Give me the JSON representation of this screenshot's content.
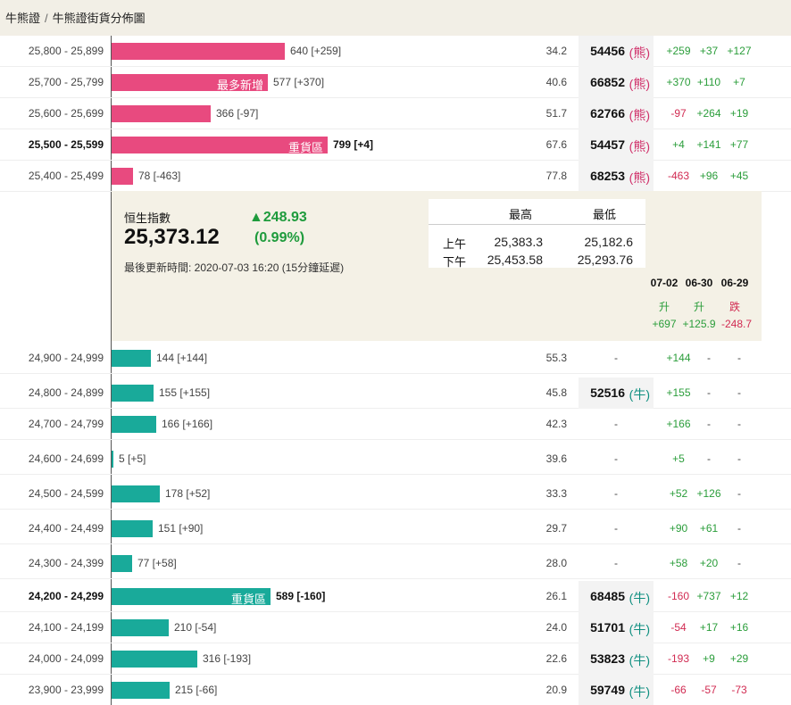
{
  "breadcrumb": {
    "home": "牛熊證",
    "separator": "/",
    "current": "牛熊證街貨分佈圖"
  },
  "bear_rows": [
    {
      "range": "25,800 - 25,899",
      "qty": 640,
      "label": "640 [+259]",
      "tag": "",
      "bold": false,
      "pct": "34.2",
      "code": "54456",
      "code_tag": "(熊)",
      "c1": "+259",
      "c2": "+37",
      "c3": "+127"
    },
    {
      "range": "25,700 - 25,799",
      "qty": 577,
      "label": "577 [+370]",
      "tag": "最多新增",
      "bold": false,
      "pct": "40.6",
      "code": "66852",
      "code_tag": "(熊)",
      "c1": "+370",
      "c2": "+110",
      "c3": "+7"
    },
    {
      "range": "25,600 - 25,699",
      "qty": 366,
      "label": "366 [-97]",
      "tag": "",
      "bold": false,
      "pct": "51.7",
      "code": "62766",
      "code_tag": "(熊)",
      "c1": "-97",
      "c2": "+264",
      "c3": "+19"
    },
    {
      "range": "25,500 - 25,599",
      "qty": 799,
      "label": "799 [+4]",
      "tag": "重貨區",
      "bold": true,
      "pct": "67.6",
      "code": "54457",
      "code_tag": "(熊)",
      "c1": "+4",
      "c2": "+141",
      "c3": "+77"
    },
    {
      "range": "25,400 - 25,499",
      "qty": 78,
      "label": "78 [-463]",
      "tag": "",
      "bold": false,
      "pct": "77.8",
      "code": "68253",
      "code_tag": "(熊)",
      "c1": "-463",
      "c2": "+96",
      "c3": "+45"
    }
  ],
  "index": {
    "name": "恒生指數",
    "value": "25,373.12",
    "change": "▲248.93",
    "change_pct": "(0.99%)",
    "updated": "最後更新時間: 2020-07-03 16:20 (15分鐘延遲)",
    "high_label": "最高",
    "low_label": "最低",
    "sessions": [
      {
        "label": "上午",
        "high": "25,383.3",
        "low": "25,182.6"
      },
      {
        "label": "下午",
        "high": "25,453.58",
        "low": "25,293.76"
      }
    ]
  },
  "history": {
    "dates": [
      "07-02",
      "06-30",
      "06-29"
    ],
    "directions": [
      "升",
      "升",
      "跌"
    ],
    "values": [
      "+697",
      "+125.9",
      "-248.7"
    ]
  },
  "bull_rows": [
    {
      "range": "24,900 - 24,999",
      "qty": 144,
      "label": "144 [+144]",
      "tag": "",
      "bold": false,
      "pct": "55.3",
      "code": "",
      "code_tag": "",
      "c1": "+144",
      "c2": "-",
      "c3": "-"
    },
    {
      "range": "24,800 - 24,899",
      "qty": 155,
      "label": "155 [+155]",
      "tag": "",
      "bold": false,
      "pct": "45.8",
      "code": "52516",
      "code_tag": "(牛)",
      "c1": "+155",
      "c2": "-",
      "c3": "-"
    },
    {
      "range": "24,700 - 24,799",
      "qty": 166,
      "label": "166 [+166]",
      "tag": "",
      "bold": false,
      "pct": "42.3",
      "code": "",
      "code_tag": "",
      "c1": "+166",
      "c2": "-",
      "c3": "-"
    },
    {
      "range": "24,600 - 24,699",
      "qty": 5,
      "label": "5 [+5]",
      "tag": "",
      "bold": false,
      "pct": "39.6",
      "code": "",
      "code_tag": "",
      "c1": "+5",
      "c2": "-",
      "c3": "-"
    },
    {
      "range": "24,500 - 24,599",
      "qty": 178,
      "label": "178 [+52]",
      "tag": "",
      "bold": false,
      "pct": "33.3",
      "code": "",
      "code_tag": "",
      "c1": "+52",
      "c2": "+126",
      "c3": "-"
    },
    {
      "range": "24,400 - 24,499",
      "qty": 151,
      "label": "151 [+90]",
      "tag": "",
      "bold": false,
      "pct": "29.7",
      "code": "",
      "code_tag": "",
      "c1": "+90",
      "c2": "+61",
      "c3": "-"
    },
    {
      "range": "24,300 - 24,399",
      "qty": 77,
      "label": "77 [+58]",
      "tag": "",
      "bold": false,
      "pct": "28.0",
      "code": "",
      "code_tag": "",
      "c1": "+58",
      "c2": "+20",
      "c3": "-"
    },
    {
      "range": "24,200 - 24,299",
      "qty": 589,
      "label": "589 [-160]",
      "tag": "重貨區",
      "bold": true,
      "pct": "26.1",
      "code": "68485",
      "code_tag": "(牛)",
      "c1": "-160",
      "c2": "+737",
      "c3": "+12"
    },
    {
      "range": "24,100 - 24,199",
      "qty": 210,
      "label": "210 [-54]",
      "tag": "",
      "bold": false,
      "pct": "24.0",
      "code": "51701",
      "code_tag": "(牛)",
      "c1": "-54",
      "c2": "+17",
      "c3": "+16"
    },
    {
      "range": "24,000 - 24,099",
      "qty": 316,
      "label": "316 [-193]",
      "tag": "",
      "bold": false,
      "pct": "22.6",
      "code": "53823",
      "code_tag": "(牛)",
      "c1": "-193",
      "c2": "+9",
      "c3": "+29"
    },
    {
      "range": "23,900 - 23,999",
      "qty": 215,
      "label": "215 [-66]",
      "tag": "",
      "bold": false,
      "pct": "20.9",
      "code": "59749",
      "code_tag": "(牛)",
      "c1": "-66",
      "c2": "-57",
      "c3": "-73"
    }
  ],
  "colors": {
    "bear": "#e84a7f",
    "bull": "#19aa9a",
    "up": "#2a9d3a",
    "down": "#d12b52",
    "panel": "#f4f1e6"
  }
}
